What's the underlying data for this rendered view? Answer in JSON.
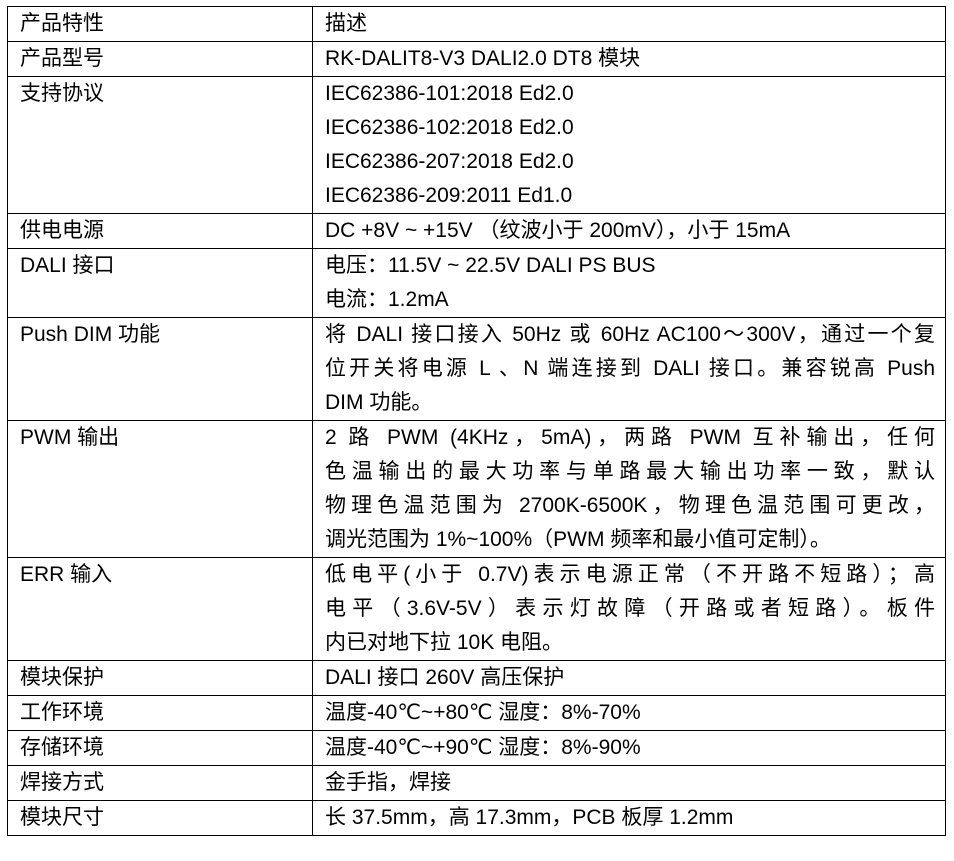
{
  "header": {
    "key": "产品特性",
    "value": "描述"
  },
  "rows": [
    {
      "key": "产品型号",
      "lines": [
        "RK-DALIT8-V3 DALI2.0 DT8 模块"
      ]
    },
    {
      "key": "支持协议",
      "lines": [
        "IEC62386-101:2018 Ed2.0",
        "IEC62386-102:2018 Ed2.0",
        "IEC62386-207:2018 Ed2.0",
        "IEC62386-209:2011 Ed1.0"
      ]
    },
    {
      "key": "供电电源",
      "lines": [
        "DC +8V ~ +15V （纹波小于 200mV），小于 15mA"
      ]
    },
    {
      "key": "DALI 接口",
      "lines": [
        "电压：11.5V ~ 22.5V DALI PS BUS",
        "电流：1.2mA"
      ]
    },
    {
      "key": "Push DIM 功能",
      "lines": [
        "将 DALI 接口接入 50Hz 或 60Hz AC100～300V，通过一个复",
        "位开关将电源 L 、N 端连接到 DALI 接口。兼容锐高 Push",
        "DIM 功能。"
      ]
    },
    {
      "key": "PWM 输出",
      "lines": [
        "2 路 PWM (4KHz，5mA)，两路 PWM 互补输出，任何",
        "色温输出的最大功率与单路最大输出功率一致，默认",
        "物理色温范围为 2700K-6500K，物理色温范围可更改，",
        "调光范围为 1%~100%（PWM 频率和最小值可定制）。"
      ]
    },
    {
      "key": "ERR 输入",
      "lines": [
        "低电平(小于 0.7V)表示电源正常（不开路不短路）；高",
        "电平（3.6V-5V）表示灯故障（开路或者短路）。板件",
        "内已对地下拉 10K 电阻。"
      ]
    },
    {
      "key": "模块保护",
      "lines": [
        "DALI 接口 260V 高压保护"
      ]
    },
    {
      "key": "工作环境",
      "lines": [
        "温度-40℃~+80℃  湿度：8%-70%"
      ]
    },
    {
      "key": "存储环境",
      "lines": [
        "温度-40℃~+90℃  湿度：8%-90%"
      ]
    },
    {
      "key": "焊接方式",
      "lines": [
        "金手指，焊接"
      ]
    },
    {
      "key": "模块尺寸",
      "lines": [
        "长 37.5mm，高 17.3mm，PCB 板厚 1.2mm"
      ]
    }
  ]
}
